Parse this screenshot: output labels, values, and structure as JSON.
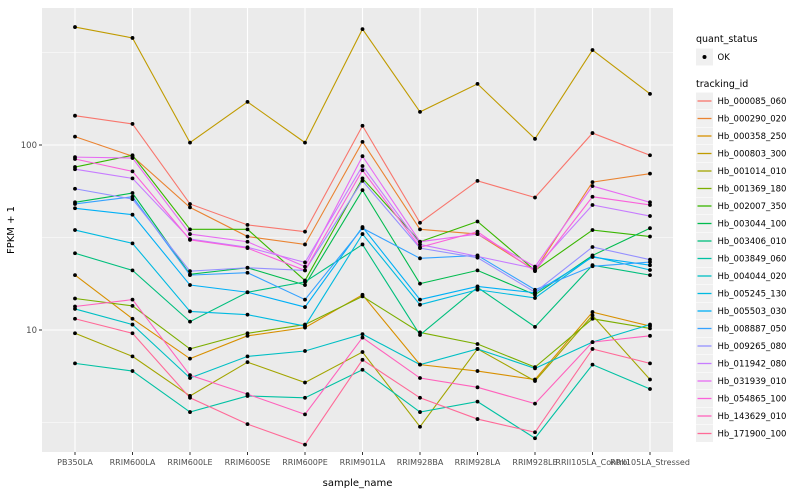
{
  "chart_data": {
    "type": "line",
    "title": "",
    "xlabel": "sample_name",
    "ylabel": "FPKM + 1",
    "y_scale": "log10",
    "y_ticks": [
      10,
      100
    ],
    "y_minor_ticks": [
      3.1623,
      31.623,
      316.23
    ],
    "ylim": [
      2.1,
      560
    ],
    "grid": true,
    "legend_position": "right",
    "categories": [
      "PB350LA",
      "RRIM600LA",
      "RRIM600LE",
      "RRIM600SE",
      "RRIM600PE",
      "RRIM901LA",
      "RRIM928BA",
      "RRIM928LA",
      "RRIM928LE",
      "RRII105LA_Control",
      "RRII105LA_Stressed"
    ],
    "legend": {
      "quant_status_title": "quant_status",
      "quant_status_items": [
        {
          "label": "OK",
          "symbol": "point"
        }
      ],
      "tracking_id_title": "tracking_id"
    },
    "series": [
      {
        "name": "Hb_000085_060",
        "color": "#F8766D",
        "values": [
          144,
          130,
          48,
          37,
          34,
          127,
          38,
          64,
          52,
          116,
          88
        ]
      },
      {
        "name": "Hb_000290_020",
        "color": "#EA8331",
        "values": [
          111,
          87,
          46,
          32,
          29,
          104,
          35,
          33,
          21,
          63,
          70
        ]
      },
      {
        "name": "Hb_000358_250",
        "color": "#D89000",
        "values": [
          19.8,
          11.5,
          7.0,
          9.3,
          10.3,
          15.5,
          6.5,
          6.0,
          5.4,
          12.5,
          10.5
        ]
      },
      {
        "name": "Hb_000803_300",
        "color": "#C09B00",
        "values": [
          434,
          379,
          103,
          171,
          103,
          423,
          151,
          214,
          108,
          326,
          189
        ]
      },
      {
        "name": "Hb_001014_010",
        "color": "#A3A500",
        "values": [
          9.6,
          7.2,
          4.4,
          6.7,
          5.2,
          7.6,
          3.0,
          7.9,
          5.3,
          12.0,
          5.4
        ]
      },
      {
        "name": "Hb_001369_180",
        "color": "#7CAE00",
        "values": [
          14.8,
          13.5,
          7.9,
          9.6,
          10.7,
          15.2,
          9.7,
          8.4,
          6.3,
          11.5,
          10.2
        ]
      },
      {
        "name": "Hb_002007_350",
        "color": "#39B600",
        "values": [
          76,
          88,
          35,
          35,
          18.5,
          66,
          30,
          38.6,
          21,
          34.7,
          32
        ]
      },
      {
        "name": "Hb_003044_100",
        "color": "#00BB4E",
        "values": [
          49,
          55,
          20,
          21.7,
          17.5,
          57,
          17.8,
          21,
          15.5,
          25.3,
          35.5
        ]
      },
      {
        "name": "Hb_003406_010",
        "color": "#00BF7D",
        "values": [
          26,
          21,
          11.1,
          16,
          18.2,
          29,
          9.4,
          17,
          10.4,
          22.4,
          19.8
        ]
      },
      {
        "name": "Hb_003849_060",
        "color": "#00C1A3",
        "values": [
          6.6,
          6.0,
          3.6,
          4.4,
          4.3,
          6.1,
          3.6,
          4.1,
          2.6,
          6.5,
          4.8
        ]
      },
      {
        "name": "Hb_004044_020",
        "color": "#00BFC4",
        "values": [
          13.0,
          10.7,
          5.5,
          7.2,
          7.7,
          9.5,
          6.5,
          7.9,
          6.2,
          8.6,
          10.7
        ]
      },
      {
        "name": "Hb_005245_130",
        "color": "#00BAE0",
        "values": [
          34.7,
          29.4,
          12.6,
          12.1,
          10.5,
          33,
          13.7,
          16.5,
          14.9,
          25,
          21.1
        ]
      },
      {
        "name": "Hb_005503_030",
        "color": "#00B0F6",
        "values": [
          45.5,
          42,
          17.5,
          16,
          13.3,
          36,
          14.6,
          17.2,
          15.9,
          24.8,
          22.4
        ]
      },
      {
        "name": "Hb_008887_050",
        "color": "#35A2FF",
        "values": [
          48,
          52.5,
          19.8,
          20.4,
          14.6,
          35.5,
          24.4,
          25.3,
          16.5,
          22.1,
          23.3
        ]
      },
      {
        "name": "Hb_009265_080",
        "color": "#9590FF",
        "values": [
          58,
          51,
          20.8,
          21.7,
          21,
          64,
          27.7,
          24.6,
          16.0,
          28.1,
          24
        ]
      },
      {
        "name": "Hb_011942_080",
        "color": "#C77CFF",
        "values": [
          74,
          66,
          31,
          28,
          23.2,
          77,
          29,
          25,
          21.5,
          47.4,
          41.3
        ]
      },
      {
        "name": "Hb_031939_010",
        "color": "#E76BF3",
        "values": [
          86,
          85,
          33,
          30,
          22,
          87,
          30,
          33,
          22,
          60,
          49
        ]
      },
      {
        "name": "Hb_054865_100",
        "color": "#FA62DB",
        "values": [
          84,
          72,
          30.7,
          27.7,
          21,
          73,
          28,
          34,
          20.8,
          52.5,
          47.4
        ]
      },
      {
        "name": "Hb_143629_010",
        "color": "#FF62BC",
        "values": [
          13.4,
          14.6,
          5.7,
          4.5,
          3.5,
          9.1,
          5.5,
          4.9,
          4.0,
          8.6,
          9.3
        ]
      },
      {
        "name": "Hb_171900_100",
        "color": "#FF6A98",
        "values": [
          11.5,
          9.6,
          4.3,
          3.1,
          2.4,
          6.9,
          4.3,
          3.3,
          2.8,
          7.9,
          6.6
        ]
      }
    ]
  },
  "styles": {
    "background": "#FFFFFF",
    "panel_bg": "#EBEBEB",
    "grid_color": "#FFFFFF",
    "axis_text_color": "#4D4D4D",
    "tick_color": "#333333",
    "point_color": "#000000",
    "legend_key_bg": "#F0F0F0"
  }
}
